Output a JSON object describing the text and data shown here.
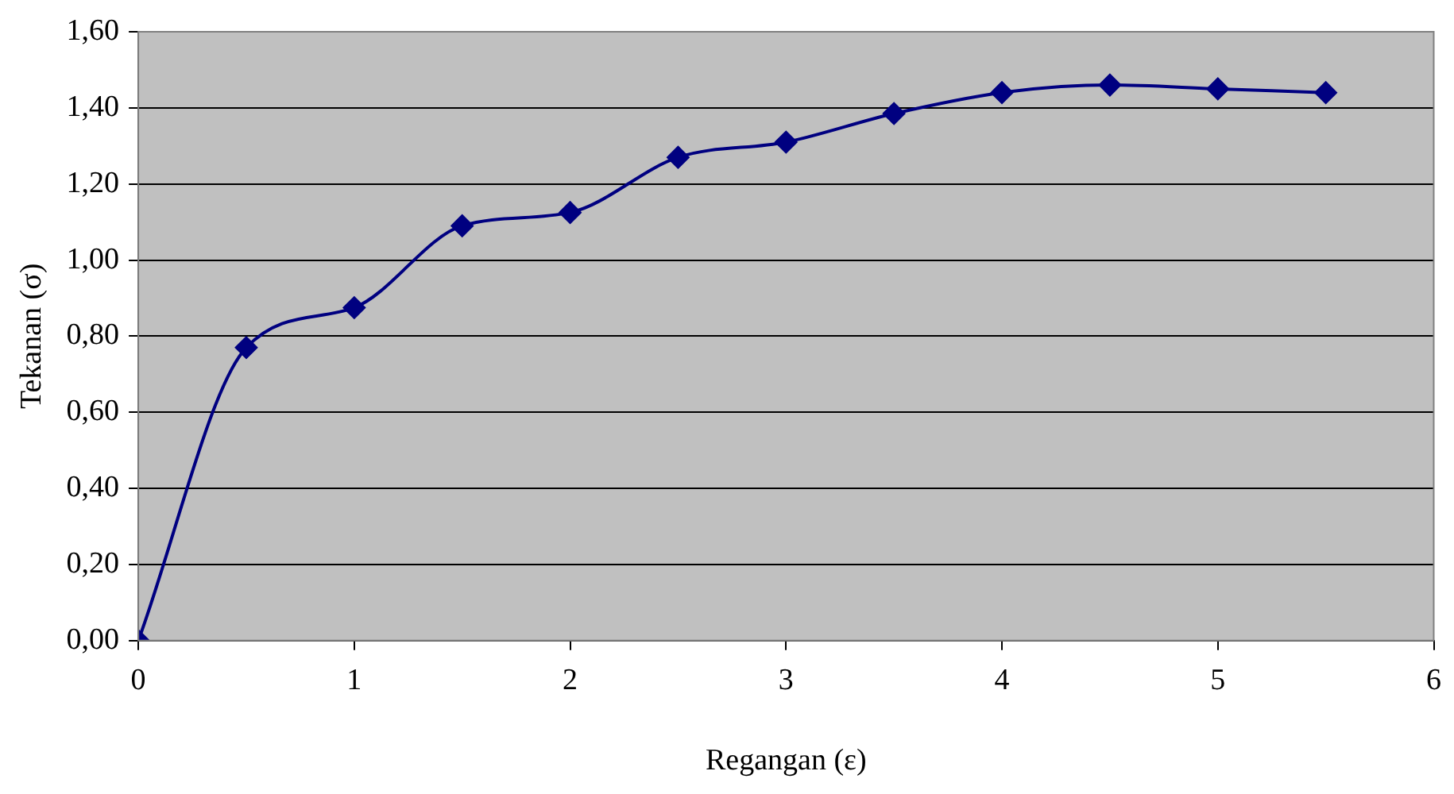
{
  "chart_data": {
    "type": "line",
    "xlabel": "Regangan (ε)",
    "ylabel": "Tekanan (σ)",
    "x": [
      0,
      0.5,
      1,
      1.5,
      2,
      2.5,
      3,
      3.5,
      4,
      4.5,
      5,
      5.5
    ],
    "series": [
      {
        "color": "#000080",
        "values": [
          0,
          0.77,
          0.875,
          1.09,
          1.125,
          1.27,
          1.31,
          1.385,
          1.44,
          1.46,
          1.45,
          1.44
        ]
      }
    ],
    "xlim": [
      0,
      6
    ],
    "xticks": [
      0,
      1,
      2,
      3,
      4,
      5,
      6
    ],
    "ylim": [
      0,
      1.6
    ],
    "yticks": [
      {
        "value": 0,
        "label": "0,00"
      },
      {
        "value": 0.2,
        "label": "0,20"
      },
      {
        "value": 0.4,
        "label": "0,40"
      },
      {
        "value": 0.6,
        "label": "0,60"
      },
      {
        "value": 0.8,
        "label": "0,80"
      },
      {
        "value": 1,
        "label": "1,00"
      },
      {
        "value": 1.2,
        "label": "1,20"
      },
      {
        "value": 1.4,
        "label": "1,40"
      },
      {
        "value": 1.6,
        "label": "1,60"
      }
    ],
    "grid": "y",
    "marker": "diamond",
    "line_style": "solid",
    "legend": false
  }
}
